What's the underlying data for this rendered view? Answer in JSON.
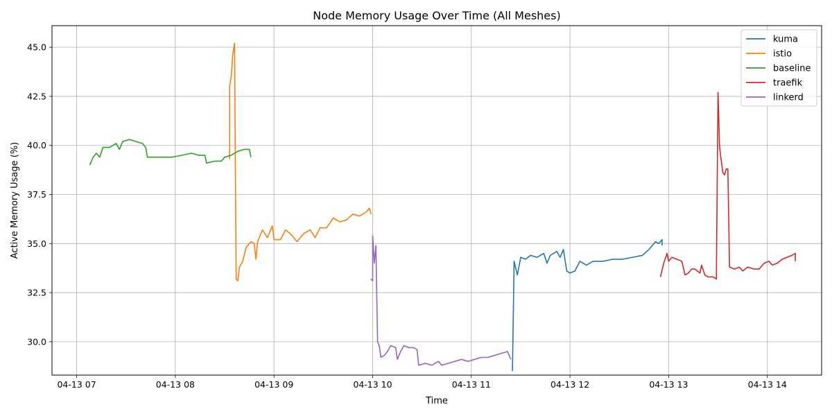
{
  "chart_data": {
    "type": "line",
    "title": "Node Memory Usage Over Time (All Meshes)",
    "xlabel": "Time",
    "ylabel": "Active Memory Usage (%)",
    "x_ticks": [
      "04-13 07",
      "04-13 08",
      "04-13 09",
      "04-13 10",
      "04-13 11",
      "04-13 12",
      "04-13 13",
      "04-13 14"
    ],
    "x_range_hours": [
      6.75,
      14.55
    ],
    "y_ticks": [
      "30.0",
      "32.5",
      "35.0",
      "37.5",
      "40.0",
      "42.5",
      "45.0"
    ],
    "ylim": [
      28.3,
      46.1
    ],
    "grid": true,
    "legend_position": "top-right",
    "series": [
      {
        "name": "kuma",
        "color": "#1f77b4",
        "points": [
          [
            "11:25",
            28.5
          ],
          [
            "11:26",
            34.1
          ],
          [
            "11:28",
            33.4
          ],
          [
            "11:30",
            34.3
          ],
          [
            "11:33",
            34.2
          ],
          [
            "11:36",
            34.4
          ],
          [
            "11:40",
            34.3
          ],
          [
            "11:44",
            34.5
          ],
          [
            "11:46",
            34.0
          ],
          [
            "11:48",
            34.4
          ],
          [
            "11:52",
            34.6
          ],
          [
            "11:54",
            34.3
          ],
          [
            "11:56",
            34.7
          ],
          [
            "11:58",
            33.6
          ],
          [
            "12:00",
            33.5
          ],
          [
            "12:03",
            33.6
          ],
          [
            "12:06",
            34.1
          ],
          [
            "12:10",
            33.9
          ],
          [
            "12:14",
            34.1
          ],
          [
            "12:20",
            34.1
          ],
          [
            "12:26",
            34.2
          ],
          [
            "12:32",
            34.2
          ],
          [
            "12:38",
            34.3
          ],
          [
            "12:44",
            34.4
          ],
          [
            "12:48",
            34.7
          ],
          [
            "12:52",
            35.1
          ],
          [
            "12:54",
            35.0
          ],
          [
            "12:56",
            35.2
          ],
          [
            "12:56",
            34.9
          ]
        ]
      },
      {
        "name": "istio",
        "color": "#ff7f0e",
        "points": [
          [
            "08:33",
            39.3
          ],
          [
            "08:33",
            43.0
          ],
          [
            "08:34",
            43.5
          ],
          [
            "08:35",
            44.7
          ],
          [
            "08:36",
            45.2
          ],
          [
            "08:37",
            33.2
          ],
          [
            "08:38",
            33.1
          ],
          [
            "08:39",
            33.8
          ],
          [
            "08:41",
            34.1
          ],
          [
            "08:43",
            34.8
          ],
          [
            "08:46",
            35.1
          ],
          [
            "08:48",
            35.0
          ],
          [
            "08:49",
            34.2
          ],
          [
            "08:50",
            35.1
          ],
          [
            "08:53",
            35.7
          ],
          [
            "08:56",
            35.3
          ],
          [
            "08:59",
            35.9
          ],
          [
            "09:00",
            35.2
          ],
          [
            "09:04",
            35.2
          ],
          [
            "09:07",
            35.7
          ],
          [
            "09:10",
            35.5
          ],
          [
            "09:14",
            35.1
          ],
          [
            "09:18",
            35.5
          ],
          [
            "09:22",
            35.7
          ],
          [
            "09:25",
            35.3
          ],
          [
            "09:28",
            35.8
          ],
          [
            "09:32",
            35.8
          ],
          [
            "09:36",
            36.3
          ],
          [
            "09:40",
            36.1
          ],
          [
            "09:44",
            36.2
          ],
          [
            "09:48",
            36.5
          ],
          [
            "09:52",
            36.4
          ],
          [
            "09:56",
            36.6
          ],
          [
            "09:58",
            36.8
          ],
          [
            "09:59",
            36.5
          ]
        ]
      },
      {
        "name": "baseline",
        "color": "#2ca02c",
        "points": [
          [
            "07:08",
            39.0
          ],
          [
            "07:10",
            39.4
          ],
          [
            "07:12",
            39.6
          ],
          [
            "07:14",
            39.4
          ],
          [
            "07:16",
            39.9
          ],
          [
            "07:20",
            39.9
          ],
          [
            "07:24",
            40.1
          ],
          [
            "07:26",
            39.8
          ],
          [
            "07:28",
            40.2
          ],
          [
            "07:32",
            40.3
          ],
          [
            "07:36",
            40.2
          ],
          [
            "07:40",
            40.1
          ],
          [
            "07:42",
            39.9
          ],
          [
            "07:43",
            39.4
          ],
          [
            "07:46",
            39.4
          ],
          [
            "07:52",
            39.4
          ],
          [
            "07:58",
            39.4
          ],
          [
            "08:04",
            39.5
          ],
          [
            "08:10",
            39.6
          ],
          [
            "08:14",
            39.5
          ],
          [
            "08:18",
            39.5
          ],
          [
            "08:19",
            39.1
          ],
          [
            "08:24",
            39.2
          ],
          [
            "08:28",
            39.2
          ],
          [
            "08:30",
            39.4
          ],
          [
            "08:34",
            39.5
          ],
          [
            "08:38",
            39.7
          ],
          [
            "08:42",
            39.8
          ],
          [
            "08:45",
            39.8
          ],
          [
            "08:46",
            39.4
          ]
        ]
      },
      {
        "name": "traefik",
        "color": "#d62728",
        "points": [
          [
            "12:55",
            33.3
          ],
          [
            "12:57",
            34.0
          ],
          [
            "12:59",
            34.5
          ],
          [
            "13:00",
            34.1
          ],
          [
            "13:02",
            34.3
          ],
          [
            "13:05",
            34.2
          ],
          [
            "13:08",
            34.1
          ],
          [
            "13:10",
            33.4
          ],
          [
            "13:12",
            33.5
          ],
          [
            "13:14",
            33.7
          ],
          [
            "13:16",
            33.7
          ],
          [
            "13:19",
            33.5
          ],
          [
            "13:20",
            33.9
          ],
          [
            "13:22",
            33.4
          ],
          [
            "13:24",
            33.3
          ],
          [
            "13:27",
            33.3
          ],
          [
            "13:29",
            33.2
          ],
          [
            "13:30",
            42.7
          ],
          [
            "13:31",
            39.9
          ],
          [
            "13:32",
            39.2
          ],
          [
            "13:33",
            38.6
          ],
          [
            "13:34",
            38.5
          ],
          [
            "13:35",
            38.8
          ],
          [
            "13:36",
            38.8
          ],
          [
            "13:37",
            33.8
          ],
          [
            "13:40",
            33.7
          ],
          [
            "13:43",
            33.8
          ],
          [
            "13:45",
            33.6
          ],
          [
            "13:48",
            33.8
          ],
          [
            "13:52",
            33.7
          ],
          [
            "13:55",
            33.7
          ],
          [
            "13:58",
            34.0
          ],
          [
            "14:01",
            34.1
          ],
          [
            "14:03",
            33.9
          ],
          [
            "14:06",
            34.0
          ],
          [
            "14:09",
            34.2
          ],
          [
            "14:12",
            34.3
          ],
          [
            "14:15",
            34.4
          ],
          [
            "14:17",
            34.5
          ],
          [
            "14:17",
            34.1
          ]
        ]
      },
      {
        "name": "linkerd",
        "color": "#9467bd",
        "points": [
          [
            "09:59",
            33.2
          ],
          [
            "10:00",
            33.1
          ],
          [
            "10:00",
            35.4
          ],
          [
            "10:01",
            34.0
          ],
          [
            "10:02",
            34.9
          ],
          [
            "10:03",
            30.0
          ],
          [
            "10:04",
            29.8
          ],
          [
            "10:05",
            29.2
          ],
          [
            "10:07",
            29.3
          ],
          [
            "10:09",
            29.5
          ],
          [
            "10:11",
            29.8
          ],
          [
            "10:14",
            29.7
          ],
          [
            "10:15",
            29.1
          ],
          [
            "10:17",
            29.5
          ],
          [
            "10:19",
            29.8
          ],
          [
            "10:22",
            29.7
          ],
          [
            "10:25",
            29.7
          ],
          [
            "10:27",
            29.6
          ],
          [
            "10:28",
            28.8
          ],
          [
            "10:32",
            28.9
          ],
          [
            "10:36",
            28.8
          ],
          [
            "10:40",
            29.0
          ],
          [
            "10:42",
            28.8
          ],
          [
            "10:46",
            28.9
          ],
          [
            "10:50",
            29.0
          ],
          [
            "10:54",
            29.1
          ],
          [
            "10:58",
            29.0
          ],
          [
            "11:02",
            29.1
          ],
          [
            "11:06",
            29.2
          ],
          [
            "11:10",
            29.2
          ],
          [
            "11:14",
            29.3
          ],
          [
            "11:18",
            29.4
          ],
          [
            "11:22",
            29.5
          ],
          [
            "11:24",
            29.1
          ]
        ]
      }
    ]
  }
}
